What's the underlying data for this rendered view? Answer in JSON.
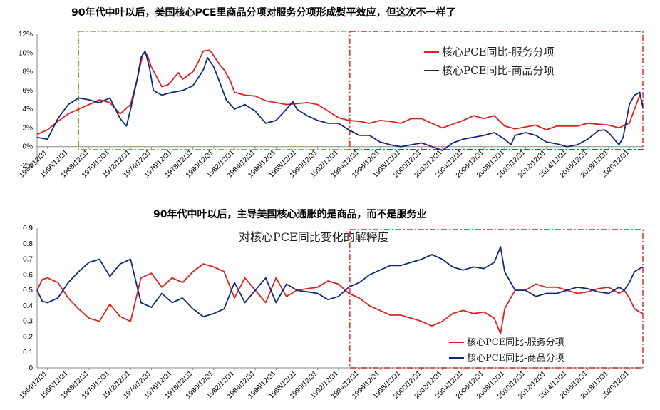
{
  "colors": {
    "services": "#e02020",
    "goods": "#102a7a",
    "green_box": "#66bb33",
    "red_box": "#cc2222"
  },
  "x_tick_labels": [
    "1964/12/31",
    "1966/12/31",
    "1968/12/31",
    "1970/12/31",
    "1972/12/31",
    "1974/12/31",
    "1976/12/31",
    "1978/12/31",
    "1980/12/31",
    "1982/12/31",
    "1984/12/31",
    "1986/12/31",
    "1988/12/31",
    "1990/12/31",
    "1992/12/31",
    "1994/12/31",
    "1996/12/31",
    "1998/12/31",
    "2000/12/31",
    "2002/12/31",
    "2004/12/31",
    "2006/12/31",
    "2008/12/31",
    "2010/12/31",
    "2012/12/31",
    "2014/12/31",
    "2016/12/31",
    "2018/12/31",
    "2020/12/31"
  ],
  "chart_data": [
    {
      "type": "line",
      "title": "90年代中叶以后，美国核心PCE里商品分项对服务分项形成熨平效应，但这次不一样了",
      "xlabel": "",
      "ylabel": "",
      "x_range": [
        1964.0,
        2022.3
      ],
      "ylim": [
        -0.02,
        0.12
      ],
      "y_ticks": [
        0.12,
        0.1,
        0.08,
        0.06,
        0.04,
        0.02,
        0.0,
        -0.02
      ],
      "y_tick_labels": [
        "12%",
        "10%",
        "8%",
        "6%",
        "4%",
        "2%",
        "0%",
        "-2%"
      ],
      "legend": [
        "核心PCE同比-服务分项",
        "核心PCE同比-商品分项"
      ],
      "legend_position": "top-right",
      "annotations": [
        "green dash-dot box: 1968–1994",
        "red dash-dot box: 1994–2022"
      ],
      "series": [
        {
          "name": "核心PCE同比-服务分项",
          "color_key": "services",
          "x": [
            1964.0,
            1965.0,
            1966.0,
            1967.0,
            1968.0,
            1969.0,
            1970.0,
            1971.0,
            1972.0,
            1973.0,
            1973.7,
            1974.2,
            1974.6,
            1975.0,
            1976.0,
            1976.6,
            1977.0,
            1977.6,
            1978.0,
            1979.0,
            1979.5,
            1980.0,
            1980.6,
            1981.0,
            1981.6,
            1982.0,
            1982.6,
            1983.0,
            1984.0,
            1985.0,
            1986.0,
            1987.0,
            1988.0,
            1989.0,
            1990.0,
            1991.0,
            1992.0,
            1993.0,
            1994.0,
            1995.0,
            1996.0,
            1997.0,
            1998.0,
            1999.0,
            2000.0,
            2001.0,
            2002.0,
            2003.0,
            2004.0,
            2005.0,
            2006.0,
            2007.0,
            2008.0,
            2009.0,
            2010.0,
            2011.0,
            2012.0,
            2013.0,
            2014.0,
            2015.0,
            2016.0,
            2017.0,
            2018.0,
            2019.0,
            2020.0,
            2020.5,
            2021.0,
            2021.5,
            2022.0,
            2022.3
          ],
          "y": [
            0.013,
            0.018,
            0.027,
            0.035,
            0.04,
            0.045,
            0.05,
            0.047,
            0.035,
            0.045,
            0.075,
            0.1,
            0.098,
            0.085,
            0.064,
            0.066,
            0.071,
            0.079,
            0.072,
            0.08,
            0.09,
            0.102,
            0.103,
            0.097,
            0.087,
            0.082,
            0.07,
            0.058,
            0.055,
            0.054,
            0.049,
            0.047,
            0.045,
            0.046,
            0.047,
            0.045,
            0.038,
            0.031,
            0.028,
            0.027,
            0.025,
            0.028,
            0.027,
            0.025,
            0.03,
            0.03,
            0.025,
            0.02,
            0.024,
            0.028,
            0.033,
            0.03,
            0.033,
            0.022,
            0.019,
            0.021,
            0.023,
            0.018,
            0.022,
            0.022,
            0.022,
            0.025,
            0.024,
            0.023,
            0.02,
            0.023,
            0.025,
            0.04,
            0.055,
            0.045
          ]
        },
        {
          "name": "核心PCE同比-商品分项",
          "color_key": "goods",
          "x": [
            1964.0,
            1965.0,
            1966.0,
            1967.0,
            1968.0,
            1969.0,
            1970.0,
            1971.0,
            1972.0,
            1972.6,
            1973.0,
            1973.6,
            1974.0,
            1974.4,
            1974.8,
            1975.2,
            1976.0,
            1977.0,
            1978.0,
            1979.0,
            1979.6,
            1980.0,
            1980.4,
            1981.0,
            1981.6,
            1982.2,
            1983.0,
            1984.0,
            1985.0,
            1986.0,
            1987.0,
            1988.0,
            1988.6,
            1989.0,
            1990.0,
            1991.0,
            1992.0,
            1993.0,
            1994.0,
            1995.0,
            1996.0,
            1997.0,
            1998.0,
            1999.0,
            2000.0,
            2001.0,
            2002.0,
            2003.0,
            2004.0,
            2005.0,
            2006.0,
            2007.0,
            2008.0,
            2009.0,
            2009.6,
            2010.0,
            2011.0,
            2012.0,
            2013.0,
            2014.0,
            2015.0,
            2016.0,
            2017.0,
            2018.0,
            2018.6,
            2019.0,
            2020.0,
            2020.4,
            2021.0,
            2021.5,
            2022.0,
            2022.3
          ],
          "y": [
            0.01,
            0.008,
            0.03,
            0.045,
            0.052,
            0.05,
            0.047,
            0.052,
            0.03,
            0.022,
            0.04,
            0.07,
            0.095,
            0.102,
            0.085,
            0.06,
            0.055,
            0.058,
            0.06,
            0.065,
            0.075,
            0.082,
            0.095,
            0.085,
            0.068,
            0.05,
            0.04,
            0.045,
            0.038,
            0.025,
            0.028,
            0.04,
            0.048,
            0.04,
            0.033,
            0.028,
            0.025,
            0.025,
            0.018,
            0.012,
            0.012,
            0.005,
            0.002,
            0.0,
            0.002,
            0.004,
            0.0,
            -0.004,
            0.004,
            0.008,
            0.01,
            0.012,
            0.015,
            0.008,
            0.002,
            0.012,
            0.015,
            0.012,
            0.005,
            0.003,
            0.0,
            0.002,
            0.008,
            0.017,
            0.018,
            0.015,
            0.002,
            0.01,
            0.045,
            0.055,
            0.058,
            0.042
          ]
        }
      ]
    },
    {
      "type": "line",
      "title": "90年代中叶以后，主导美国核心通胀的是商品，而不是服务业",
      "subtitle": "对核心PCE同比变化的解释度",
      "xlabel": "",
      "ylabel": "",
      "x_range": [
        1964.0,
        2022.3
      ],
      "ylim": [
        0,
        0.9
      ],
      "y_ticks": [
        0.9,
        0.8,
        0.7,
        0.6,
        0.5,
        0.4,
        0.3,
        0.2,
        0.1,
        0
      ],
      "y_tick_labels": [
        "0.9",
        "0.8",
        "0.7",
        "0.6",
        "0.5",
        "0.4",
        "0.3",
        "0.2",
        "0.1",
        "0"
      ],
      "legend": [
        "核心PCE同比-服务分项",
        "核心PCE同比-商品分项"
      ],
      "legend_position": "bottom-right",
      "annotations": [
        "red dash-dot box: 1994–2022"
      ],
      "series": [
        {
          "name": "核心PCE同比-服务分项",
          "color_key": "services",
          "x": [
            1964.0,
            1964.5,
            1965.0,
            1966.0,
            1967.0,
            1968.0,
            1969.0,
            1970.0,
            1971.0,
            1972.0,
            1973.0,
            1974.0,
            1975.0,
            1976.0,
            1977.0,
            1978.0,
            1979.0,
            1980.0,
            1981.0,
            1982.0,
            1983.0,
            1984.0,
            1985.0,
            1986.0,
            1987.0,
            1988.0,
            1989.0,
            1990.0,
            1991.0,
            1992.0,
            1993.0,
            1994.0,
            1995.0,
            1996.0,
            1997.0,
            1998.0,
            1999.0,
            2000.0,
            2001.0,
            2002.0,
            2003.0,
            2004.0,
            2005.0,
            2006.0,
            2007.0,
            2008.0,
            2008.6,
            2009.0,
            2010.0,
            2011.0,
            2012.0,
            2013.0,
            2014.0,
            2015.0,
            2016.0,
            2017.0,
            2018.0,
            2019.0,
            2020.0,
            2020.5,
            2021.0,
            2021.5,
            2022.0,
            2022.3
          ],
          "y": [
            0.5,
            0.57,
            0.58,
            0.55,
            0.45,
            0.38,
            0.32,
            0.3,
            0.41,
            0.33,
            0.3,
            0.58,
            0.61,
            0.52,
            0.58,
            0.55,
            0.62,
            0.67,
            0.65,
            0.62,
            0.45,
            0.58,
            0.5,
            0.42,
            0.58,
            0.46,
            0.5,
            0.51,
            0.52,
            0.56,
            0.54,
            0.48,
            0.45,
            0.4,
            0.37,
            0.34,
            0.34,
            0.32,
            0.3,
            0.27,
            0.3,
            0.35,
            0.37,
            0.35,
            0.36,
            0.32,
            0.22,
            0.38,
            0.5,
            0.5,
            0.54,
            0.52,
            0.52,
            0.5,
            0.48,
            0.49,
            0.51,
            0.52,
            0.48,
            0.5,
            0.45,
            0.38,
            0.36,
            0.35
          ]
        },
        {
          "name": "核心PCE同比-商品分项",
          "color_key": "goods",
          "x": [
            1964.0,
            1964.5,
            1965.0,
            1966.0,
            1967.0,
            1968.0,
            1969.0,
            1970.0,
            1971.0,
            1972.0,
            1973.0,
            1974.0,
            1975.0,
            1976.0,
            1977.0,
            1978.0,
            1979.0,
            1980.0,
            1981.0,
            1982.0,
            1983.0,
            1984.0,
            1985.0,
            1986.0,
            1987.0,
            1988.0,
            1989.0,
            1990.0,
            1991.0,
            1992.0,
            1993.0,
            1994.0,
            1995.0,
            1996.0,
            1997.0,
            1998.0,
            1999.0,
            2000.0,
            2001.0,
            2002.0,
            2003.0,
            2004.0,
            2005.0,
            2006.0,
            2007.0,
            2008.0,
            2008.6,
            2009.0,
            2010.0,
            2011.0,
            2012.0,
            2013.0,
            2014.0,
            2015.0,
            2016.0,
            2017.0,
            2018.0,
            2019.0,
            2020.0,
            2020.5,
            2021.0,
            2021.5,
            2022.0,
            2022.3
          ],
          "y": [
            0.5,
            0.43,
            0.42,
            0.45,
            0.55,
            0.62,
            0.68,
            0.7,
            0.59,
            0.67,
            0.7,
            0.42,
            0.39,
            0.48,
            0.42,
            0.45,
            0.38,
            0.33,
            0.35,
            0.38,
            0.55,
            0.42,
            0.5,
            0.58,
            0.42,
            0.54,
            0.5,
            0.49,
            0.48,
            0.44,
            0.46,
            0.52,
            0.55,
            0.6,
            0.63,
            0.66,
            0.66,
            0.68,
            0.7,
            0.73,
            0.7,
            0.65,
            0.63,
            0.65,
            0.64,
            0.68,
            0.78,
            0.62,
            0.5,
            0.5,
            0.46,
            0.48,
            0.48,
            0.5,
            0.52,
            0.51,
            0.49,
            0.48,
            0.52,
            0.5,
            0.55,
            0.62,
            0.64,
            0.65
          ]
        }
      ]
    }
  ]
}
